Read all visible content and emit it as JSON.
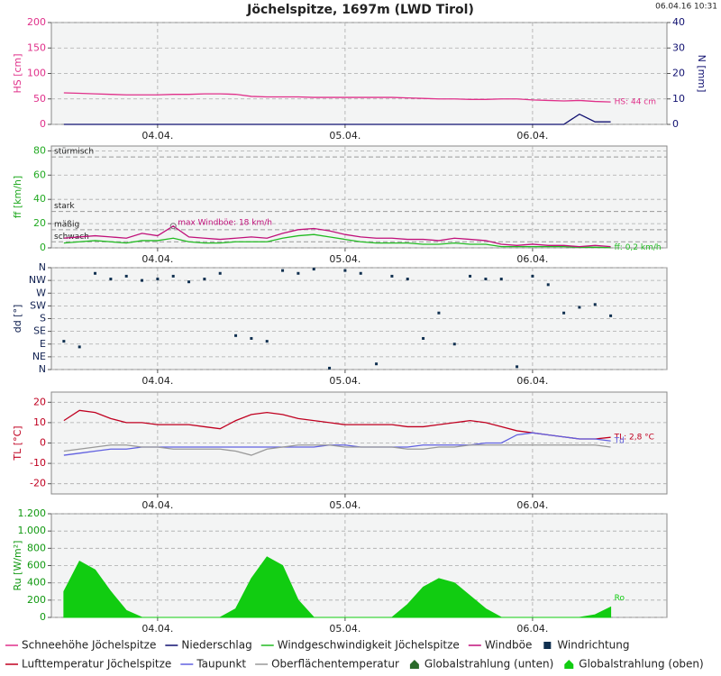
{
  "title": "Jöchelspitze, 1697m (LWD Tirol)",
  "timestamp": "06.04.16 10:31",
  "chart_data": [
    {
      "type": "line",
      "ylabel": "HS [cm]",
      "y2label": "N [mm]",
      "axis_color": "#e0308a",
      "y2_axis_color": "#101070",
      "grid": true,
      "x": [
        12,
        14,
        16,
        18,
        20,
        22,
        24,
        26,
        28,
        30,
        32,
        34,
        36,
        38,
        40,
        42,
        44,
        46,
        48,
        50,
        52,
        54,
        56,
        58,
        60,
        62,
        64,
        66,
        68,
        70,
        72,
        74,
        76,
        78,
        80,
        82
      ],
      "xlim": [
        10.4,
        89.2
      ],
      "xticks": [
        {
          "value": 24,
          "label": "04.04."
        },
        {
          "value": 48,
          "label": "05.04."
        },
        {
          "value": 72,
          "label": "06.04."
        }
      ],
      "ylim": [
        0,
        200
      ],
      "yticks": [
        0,
        50,
        100,
        150,
        200
      ],
      "y2lim": [
        0,
        40
      ],
      "y2ticks": [
        0,
        10,
        20,
        30,
        40
      ],
      "series": [
        {
          "name": "Schneehöhe Jöchelspitze",
          "color": "#e0308a",
          "end_label": "HS: 44 cm",
          "values": [
            62,
            61,
            60,
            59,
            58,
            58,
            58,
            59,
            59,
            60,
            60,
            59,
            55,
            54,
            54,
            54,
            53,
            53,
            53,
            53,
            53,
            53,
            52,
            51,
            50,
            50,
            49,
            49,
            50,
            50,
            48,
            47,
            46,
            47,
            45,
            44
          ]
        },
        {
          "name": "Niederschlag",
          "color": "#101070",
          "axis": "y2",
          "values": [
            0,
            0,
            0,
            0,
            0,
            0,
            0,
            0,
            0,
            0,
            0,
            0,
            0,
            0,
            0,
            0,
            0,
            0,
            0,
            0,
            0,
            0,
            0,
            0,
            0,
            0,
            0,
            0,
            0,
            0,
            0,
            0,
            0,
            4,
            1,
            1
          ]
        }
      ]
    },
    {
      "type": "line",
      "ylabel": "ff [km/h]",
      "axis_color": "#22aa22",
      "grid": true,
      "x": [
        12,
        14,
        16,
        18,
        20,
        22,
        24,
        26,
        28,
        30,
        32,
        34,
        36,
        38,
        40,
        42,
        44,
        46,
        48,
        50,
        52,
        54,
        56,
        58,
        60,
        62,
        64,
        66,
        68,
        70,
        72,
        74,
        76,
        78,
        80,
        82
      ],
      "xlim": [
        10.4,
        89.2
      ],
      "xticks": [
        {
          "value": 24,
          "label": "04.04."
        },
        {
          "value": 48,
          "label": "05.04."
        },
        {
          "value": 72,
          "label": "06.04."
        }
      ],
      "ylim": [
        0,
        84
      ],
      "yticks": [
        0,
        20,
        40,
        60,
        80
      ],
      "thresholds": [
        {
          "label": "stürmisch",
          "value": 75
        },
        {
          "label": "stark",
          "value": 30
        },
        {
          "label": "mäßig",
          "value": 15
        },
        {
          "label": "schwach",
          "value": 5
        }
      ],
      "annotation": "max Windböe: 18 km/h",
      "series": [
        {
          "name": "Windgeschwindigkeit Jöchelspitze",
          "color": "#22bb22",
          "end_label": "ff: 0,2 km/h",
          "values": [
            4,
            5,
            6,
            5,
            4,
            6,
            6,
            8,
            5,
            4,
            4,
            5,
            5,
            5,
            8,
            10,
            11,
            9,
            7,
            5,
            4,
            4,
            4,
            3,
            3,
            4,
            3,
            3,
            1,
            1,
            1,
            1,
            1,
            0.5,
            0.5,
            0.2
          ]
        },
        {
          "name": "Windböe",
          "color": "#c0107a",
          "values": [
            8,
            9,
            10,
            9,
            8,
            12,
            10,
            18,
            9,
            8,
            7,
            8,
            9,
            8,
            12,
            15,
            16,
            14,
            11,
            9,
            8,
            8,
            7,
            7,
            6,
            8,
            7,
            6,
            3,
            2,
            3,
            2,
            2,
            1,
            2,
            1
          ]
        }
      ]
    },
    {
      "type": "scatter",
      "ylabel": "dd [°]",
      "axis_color": "#102050",
      "grid": true,
      "x": [
        12,
        14,
        16,
        18,
        20,
        22,
        24,
        26,
        28,
        30,
        32,
        34,
        36,
        38,
        40,
        42,
        44,
        46,
        48,
        50,
        52,
        54,
        56,
        58,
        60,
        62,
        64,
        66,
        68,
        70,
        72,
        74,
        76,
        78,
        80,
        82
      ],
      "xlim": [
        10.4,
        89.2
      ],
      "xticks": [
        {
          "value": 24,
          "label": "04.04."
        },
        {
          "value": 48,
          "label": "05.04."
        },
        {
          "value": 72,
          "label": "06.04."
        }
      ],
      "ylim": [
        0,
        360
      ],
      "yticks": [
        {
          "value": 0,
          "label": "N"
        },
        {
          "value": 45,
          "label": "NE"
        },
        {
          "value": 90,
          "label": "E"
        },
        {
          "value": 135,
          "label": "SE"
        },
        {
          "value": 180,
          "label": "S"
        },
        {
          "value": 225,
          "label": "SW"
        },
        {
          "value": 270,
          "label": "W"
        },
        {
          "value": 315,
          "label": "NW"
        },
        {
          "value": 360,
          "label": "N"
        }
      ],
      "series": [
        {
          "name": "Windrichtung",
          "color": "#103050",
          "values": [
            100,
            80,
            340,
            320,
            330,
            315,
            320,
            330,
            310,
            320,
            340,
            120,
            110,
            100,
            350,
            340,
            355,
            5,
            350,
            340,
            20,
            330,
            320,
            110,
            200,
            90,
            330,
            320,
            320,
            10,
            330,
            300,
            200,
            220,
            230,
            190
          ]
        }
      ]
    },
    {
      "type": "line",
      "ylabel": "TL [°C]",
      "axis_color": "#c00020",
      "grid": true,
      "x": [
        12,
        14,
        16,
        18,
        20,
        22,
        24,
        26,
        28,
        30,
        32,
        34,
        36,
        38,
        40,
        42,
        44,
        46,
        48,
        50,
        52,
        54,
        56,
        58,
        60,
        62,
        64,
        66,
        68,
        70,
        72,
        74,
        76,
        78,
        80,
        82
      ],
      "xlim": [
        10.4,
        89.2
      ],
      "xticks": [
        {
          "value": 24,
          "label": "04.04."
        },
        {
          "value": 48,
          "label": "05.04."
        },
        {
          "value": 72,
          "label": "06.04."
        }
      ],
      "ylim": [
        -25,
        25
      ],
      "yticks": [
        -20,
        -10,
        0,
        10,
        20
      ],
      "series": [
        {
          "name": "Lufttemperatur Jöchelspitze",
          "color": "#c00020",
          "end_label": "TL: 2,8 °C",
          "values": [
            11,
            16,
            15,
            12,
            10,
            10,
            9,
            9,
            9,
            8,
            7,
            11,
            14,
            15,
            14,
            12,
            11,
            10,
            9,
            9,
            9,
            9,
            8,
            8,
            9,
            10,
            11,
            10,
            8,
            6,
            5,
            4,
            3,
            2,
            2,
            2.8
          ]
        },
        {
          "name": "Taupunkt",
          "color": "#6060e0",
          "end_label": "Td",
          "values": [
            -6,
            -5,
            -4,
            -3,
            -3,
            -2,
            -2,
            -2,
            -2,
            -2,
            -2,
            -2,
            -2,
            -2,
            -2,
            -2,
            -2,
            -1,
            -1,
            -2,
            -2,
            -2,
            -2,
            -1,
            -1,
            -1,
            -1,
            0,
            0,
            4,
            5,
            4,
            3,
            2,
            2,
            1
          ]
        },
        {
          "name": "Oberflächentemperatur",
          "color": "#999999",
          "values": [
            -4,
            -3,
            -2,
            -1,
            -1,
            -2,
            -2,
            -3,
            -3,
            -3,
            -3,
            -4,
            -6,
            -3,
            -2,
            -1,
            -1,
            -1,
            -2,
            -2,
            -2,
            -2,
            -3,
            -3,
            -2,
            -2,
            -1,
            -1,
            -1,
            -1,
            -1,
            -1,
            -1,
            -1,
            -1,
            -2
          ]
        }
      ]
    },
    {
      "type": "area",
      "ylabel": "Ru [W/m²]",
      "axis_color": "#119911",
      "grid": true,
      "x": [
        12,
        14,
        16,
        18,
        20,
        22,
        24,
        26,
        28,
        30,
        32,
        34,
        36,
        38,
        40,
        42,
        44,
        46,
        48,
        50,
        52,
        54,
        56,
        58,
        60,
        62,
        64,
        66,
        68,
        70,
        72,
        74,
        76,
        78,
        80,
        82
      ],
      "xlim": [
        10.4,
        89.2
      ],
      "xticks": [
        {
          "value": 24,
          "label": "04.04."
        },
        {
          "value": 48,
          "label": "05.04."
        },
        {
          "value": 72,
          "label": "06.04."
        }
      ],
      "ylim": [
        0,
        1200
      ],
      "yticks": [
        0,
        200,
        400,
        600,
        800,
        {
          "value": 1000,
          "label": "1.000"
        },
        {
          "value": 1200,
          "label": "1.200"
        }
      ],
      "series": [
        {
          "name": "Globalstrahlung (unten)",
          "color": "#2a6a2a",
          "values": [
            0,
            0,
            0,
            0,
            0,
            0,
            0,
            0,
            0,
            0,
            0,
            0,
            0,
            0,
            0,
            0,
            0,
            0,
            0,
            0,
            0,
            0,
            0,
            0,
            0,
            0,
            0,
            0,
            0,
            0,
            0,
            0,
            0,
            0,
            0,
            0
          ]
        },
        {
          "name": "Globalstrahlung (oben)",
          "color": "#11cc11",
          "end_label": "Ro",
          "values": [
            300,
            650,
            550,
            300,
            80,
            0,
            0,
            0,
            0,
            0,
            0,
            100,
            450,
            700,
            600,
            200,
            0,
            0,
            0,
            0,
            0,
            0,
            150,
            350,
            450,
            400,
            250,
            100,
            0,
            0,
            0,
            0,
            0,
            0,
            30,
            120
          ]
        }
      ]
    }
  ]
}
